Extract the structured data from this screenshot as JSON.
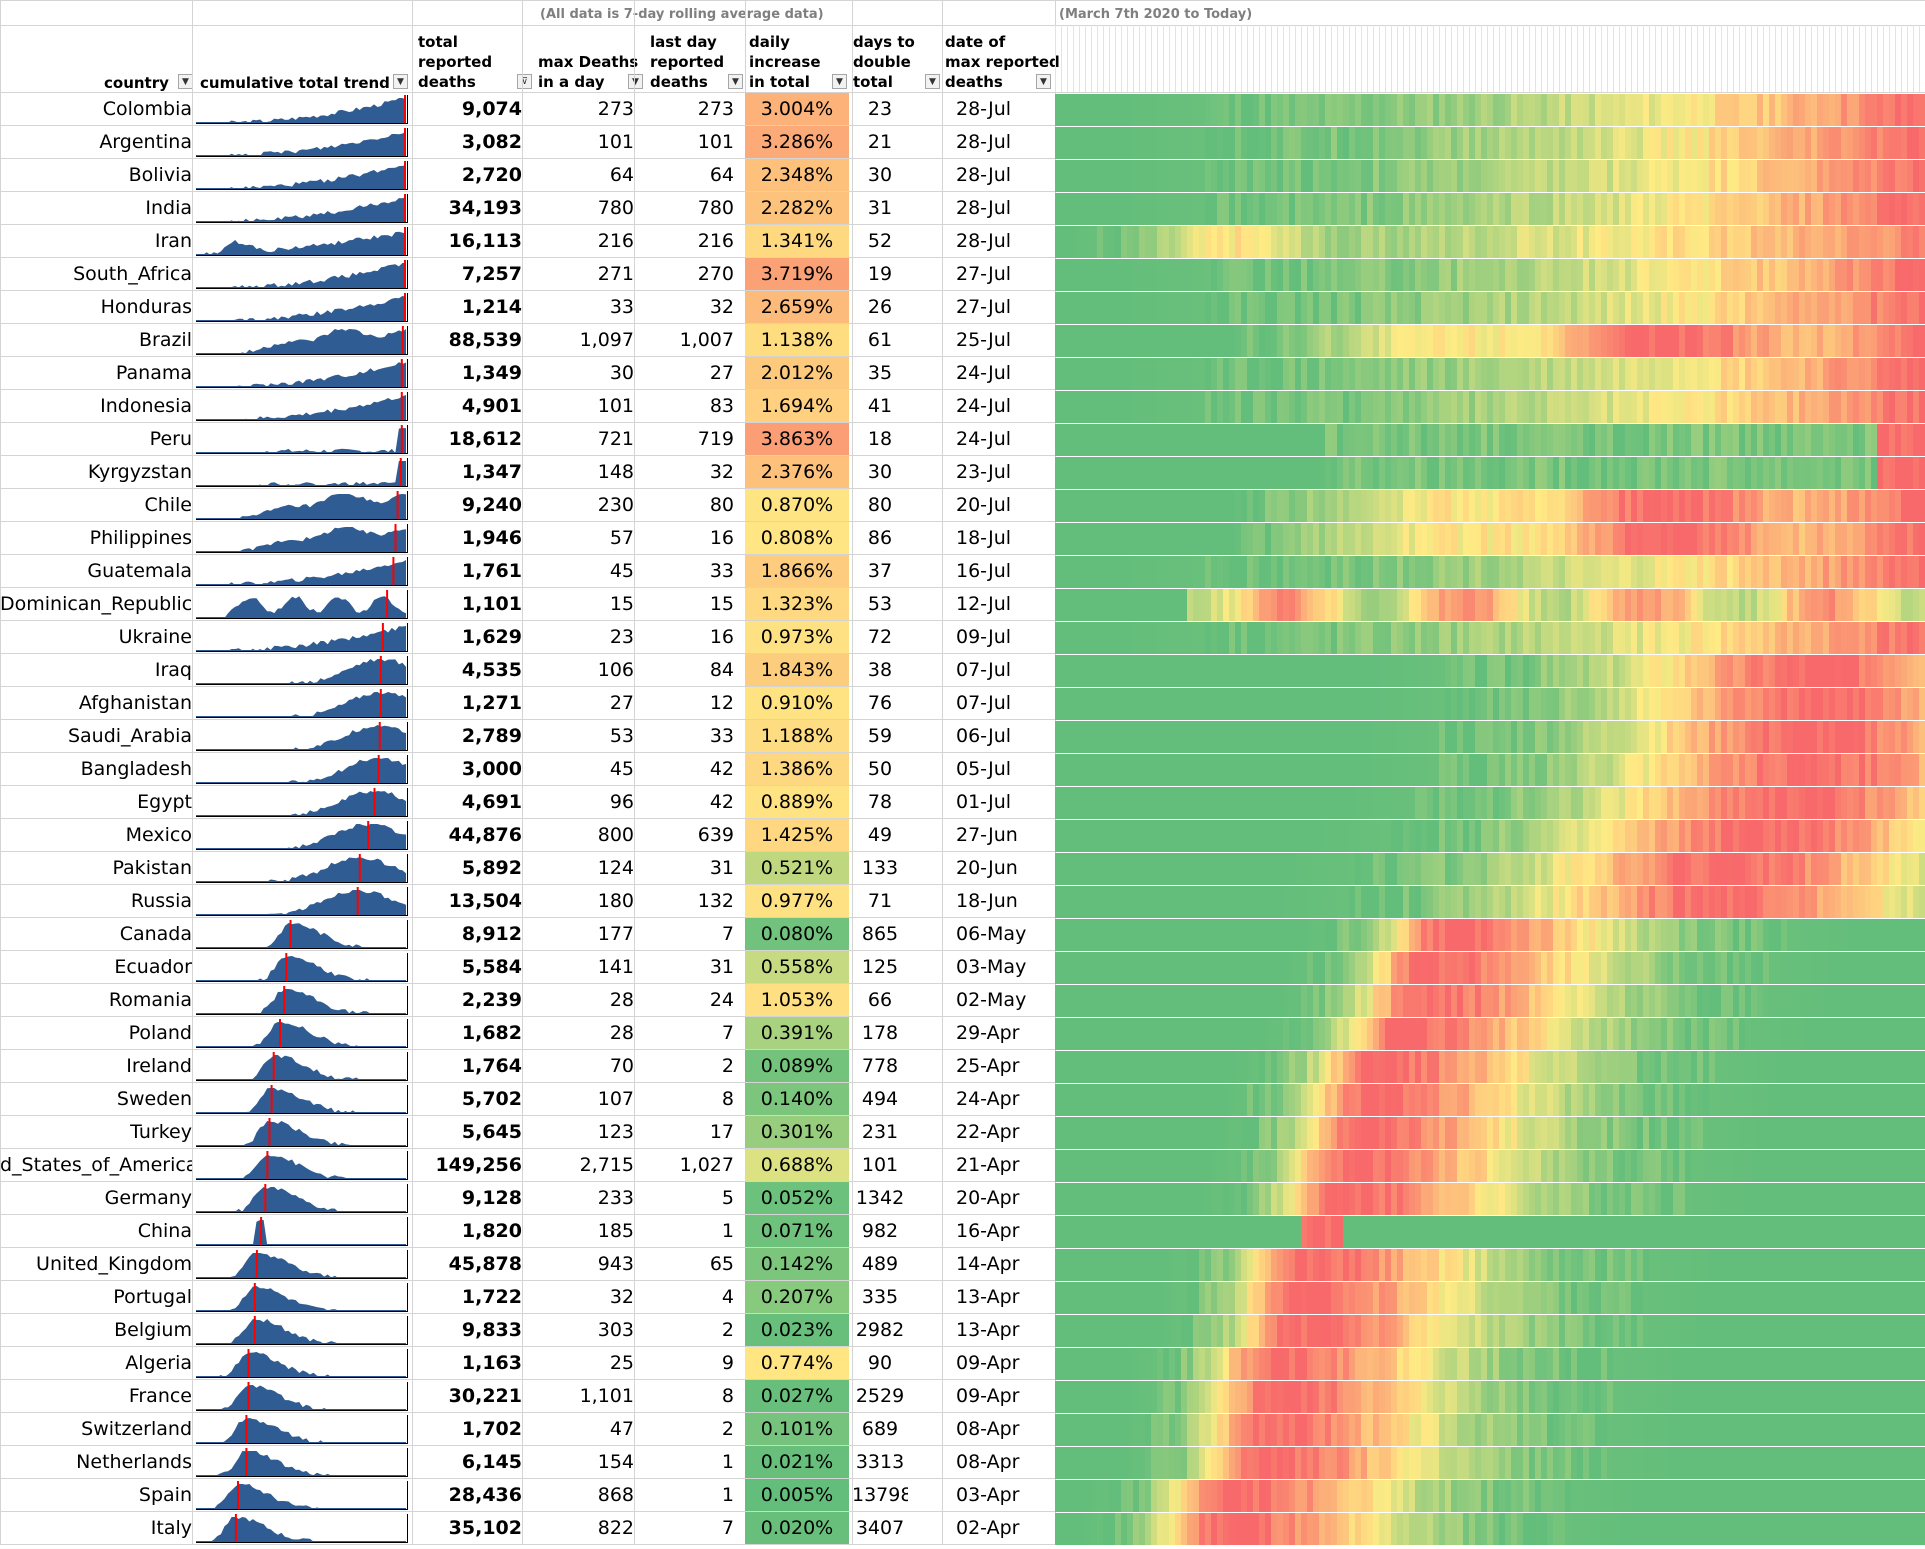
{
  "notes": {
    "rolling_note": "(All data is 7-day rolling average data)",
    "range_note": "(March 7th 2020 to Today)"
  },
  "headers": {
    "country": "country",
    "trend": "cumulative total trend",
    "total": "total\nreported\ndeaths",
    "max": "max Deaths\nin a day",
    "last": "last day\nreported\ndeaths",
    "daily": "daily\nincrease\nin total",
    "double": "days to\ndouble\ntotal",
    "date": "date of\nmax reported\ndeaths"
  },
  "filter_icon": "filter-dropdown-icon",
  "colors": {
    "spark_fill": "#2e5c93",
    "spark_marker": "#ff0000",
    "heat_low": "#63be7b",
    "heat_mid": "#ffeb84",
    "heat_high": "#f8696b"
  },
  "chart_data": {
    "type": "table",
    "columns": [
      "country",
      "total reported deaths",
      "max Deaths in a day",
      "last day reported deaths",
      "daily increase in total",
      "days to double total",
      "date of max reported deaths"
    ],
    "rows": [
      {
        "country": "Colombia",
        "total": "9,074",
        "max": "273",
        "last": "273",
        "daily": "3.004%",
        "double": "23",
        "date": "28-Jul",
        "peak": 1.0,
        "trend": "rising"
      },
      {
        "country": "Argentina",
        "total": "3,082",
        "max": "101",
        "last": "101",
        "daily": "3.286%",
        "double": "21",
        "date": "28-Jul",
        "peak": 1.0,
        "trend": "rising"
      },
      {
        "country": "Bolivia",
        "total": "2,720",
        "max": "64",
        "last": "64",
        "daily": "2.348%",
        "double": "30",
        "date": "28-Jul",
        "peak": 1.0,
        "trend": "rising"
      },
      {
        "country": "India",
        "total": "34,193",
        "max": "780",
        "last": "780",
        "daily": "2.282%",
        "double": "31",
        "date": "28-Jul",
        "peak": 1.0,
        "trend": "rising"
      },
      {
        "country": "Iran",
        "total": "16,113",
        "max": "216",
        "last": "216",
        "daily": "1.341%",
        "double": "52",
        "date": "28-Jul",
        "peak": 1.0,
        "trend": "wave2"
      },
      {
        "country": "South_Africa",
        "total": "7,257",
        "max": "271",
        "last": "270",
        "daily": "3.719%",
        "double": "19",
        "date": "27-Jul",
        "peak": 0.995,
        "trend": "rising"
      },
      {
        "country": "Honduras",
        "total": "1,214",
        "max": "33",
        "last": "32",
        "daily": "2.659%",
        "double": "26",
        "date": "27-Jul",
        "peak": 0.995,
        "trend": "rising"
      },
      {
        "country": "Brazil",
        "total": "88,539",
        "max": "1,097",
        "last": "1,007",
        "daily": "1.138%",
        "double": "61",
        "date": "25-Jul",
        "peak": 0.985,
        "trend": "plateau"
      },
      {
        "country": "Panama",
        "total": "1,349",
        "max": "30",
        "last": "27",
        "daily": "2.012%",
        "double": "35",
        "date": "24-Jul",
        "peak": 0.98,
        "trend": "rising"
      },
      {
        "country": "Indonesia",
        "total": "4,901",
        "max": "101",
        "last": "83",
        "daily": "1.694%",
        "double": "41",
        "date": "24-Jul",
        "peak": 0.98,
        "trend": "rising"
      },
      {
        "country": "Peru",
        "total": "18,612",
        "max": "721",
        "last": "719",
        "daily": "3.863%",
        "double": "18",
        "date": "24-Jul",
        "peak": 0.98,
        "trend": "spike"
      },
      {
        "country": "Kyrgyzstan",
        "total": "1,347",
        "max": "148",
        "last": "32",
        "daily": "2.376%",
        "double": "30",
        "date": "23-Jul",
        "peak": 0.975,
        "trend": "spike"
      },
      {
        "country": "Chile",
        "total": "9,240",
        "max": "230",
        "last": "80",
        "daily": "0.870%",
        "double": "80",
        "date": "20-Jul",
        "peak": 0.96,
        "trend": "plateau"
      },
      {
        "country": "Philippines",
        "total": "1,946",
        "max": "57",
        "last": "16",
        "daily": "0.808%",
        "double": "86",
        "date": "18-Jul",
        "peak": 0.95,
        "trend": "plateau"
      },
      {
        "country": "Guatemala",
        "total": "1,761",
        "max": "45",
        "last": "33",
        "daily": "1.866%",
        "double": "37",
        "date": "16-Jul",
        "peak": 0.94,
        "trend": "rising"
      },
      {
        "country": "Dominican_Republic",
        "total": "1,101",
        "max": "15",
        "last": "15",
        "daily": "1.323%",
        "double": "53",
        "date": "12-Jul",
        "peak": 0.91,
        "trend": "flat"
      },
      {
        "country": "Ukraine",
        "total": "1,629",
        "max": "23",
        "last": "16",
        "daily": "0.973%",
        "double": "72",
        "date": "09-Jul",
        "peak": 0.89,
        "trend": "rising"
      },
      {
        "country": "Iraq",
        "total": "4,535",
        "max": "106",
        "last": "84",
        "daily": "1.843%",
        "double": "38",
        "date": "07-Jul",
        "peak": 0.88,
        "trend": "hump"
      },
      {
        "country": "Afghanistan",
        "total": "1,271",
        "max": "27",
        "last": "12",
        "daily": "0.910%",
        "double": "76",
        "date": "07-Jul",
        "peak": 0.88,
        "trend": "hump"
      },
      {
        "country": "Saudi_Arabia",
        "total": "2,789",
        "max": "53",
        "last": "33",
        "daily": "1.188%",
        "double": "59",
        "date": "06-Jul",
        "peak": 0.875,
        "trend": "hump"
      },
      {
        "country": "Bangladesh",
        "total": "3,000",
        "max": "45",
        "last": "42",
        "daily": "1.386%",
        "double": "50",
        "date": "05-Jul",
        "peak": 0.87,
        "trend": "hump"
      },
      {
        "country": "Egypt",
        "total": "4,691",
        "max": "96",
        "last": "42",
        "daily": "0.889%",
        "double": "78",
        "date": "01-Jul",
        "peak": 0.85,
        "trend": "hump"
      },
      {
        "country": "Mexico",
        "total": "44,876",
        "max": "800",
        "last": "639",
        "daily": "1.425%",
        "double": "49",
        "date": "27-Jun",
        "peak": 0.82,
        "trend": "hump"
      },
      {
        "country": "Pakistan",
        "total": "5,892",
        "max": "124",
        "last": "31",
        "daily": "0.521%",
        "double": "133",
        "date": "20-Jun",
        "peak": 0.78,
        "trend": "hump"
      },
      {
        "country": "Russia",
        "total": "13,504",
        "max": "180",
        "last": "132",
        "daily": "0.977%",
        "double": "71",
        "date": "18-Jun",
        "peak": 0.77,
        "trend": "hump"
      },
      {
        "country": "Canada",
        "total": "8,912",
        "max": "177",
        "last": "7",
        "daily": "0.080%",
        "double": "865",
        "date": "06-May",
        "peak": 0.45,
        "trend": "early"
      },
      {
        "country": "Ecuador",
        "total": "5,584",
        "max": "141",
        "last": "31",
        "daily": "0.558%",
        "double": "125",
        "date": "03-May",
        "peak": 0.43,
        "trend": "early"
      },
      {
        "country": "Romania",
        "total": "2,239",
        "max": "28",
        "last": "24",
        "daily": "1.053%",
        "double": "66",
        "date": "02-May",
        "peak": 0.42,
        "trend": "early"
      },
      {
        "country": "Poland",
        "total": "1,682",
        "max": "28",
        "last": "7",
        "daily": "0.391%",
        "double": "178",
        "date": "29-Apr",
        "peak": 0.4,
        "trend": "early"
      },
      {
        "country": "Ireland",
        "total": "1,764",
        "max": "70",
        "last": "2",
        "daily": "0.089%",
        "double": "778",
        "date": "25-Apr",
        "peak": 0.37,
        "trend": "early"
      },
      {
        "country": "Sweden",
        "total": "5,702",
        "max": "107",
        "last": "8",
        "daily": "0.140%",
        "double": "494",
        "date": "24-Apr",
        "peak": 0.36,
        "trend": "early"
      },
      {
        "country": "Turkey",
        "total": "5,645",
        "max": "123",
        "last": "17",
        "daily": "0.301%",
        "double": "231",
        "date": "22-Apr",
        "peak": 0.35,
        "trend": "early"
      },
      {
        "country": "d_States_of_America",
        "total": "149,256",
        "max": "2,715",
        "last": "1,027",
        "daily": "0.688%",
        "double": "101",
        "date": "21-Apr",
        "peak": 0.34,
        "trend": "early"
      },
      {
        "country": "Germany",
        "total": "9,128",
        "max": "233",
        "last": "5",
        "daily": "0.052%",
        "double": "1342",
        "date": "20-Apr",
        "peak": 0.33,
        "trend": "early"
      },
      {
        "country": "China",
        "total": "1,820",
        "max": "185",
        "last": "1",
        "daily": "0.071%",
        "double": "982",
        "date": "16-Apr",
        "peak": 0.31,
        "trend": "china"
      },
      {
        "country": "United_Kingdom",
        "total": "45,878",
        "max": "943",
        "last": "65",
        "daily": "0.142%",
        "double": "489",
        "date": "14-Apr",
        "peak": 0.29,
        "trend": "early"
      },
      {
        "country": "Portugal",
        "total": "1,722",
        "max": "32",
        "last": "4",
        "daily": "0.207%",
        "double": "335",
        "date": "13-Apr",
        "peak": 0.28,
        "trend": "early"
      },
      {
        "country": "Belgium",
        "total": "9,833",
        "max": "303",
        "last": "2",
        "daily": "0.023%",
        "double": "2982",
        "date": "13-Apr",
        "peak": 0.28,
        "trend": "early"
      },
      {
        "country": "Algeria",
        "total": "1,163",
        "max": "25",
        "last": "9",
        "daily": "0.774%",
        "double": "90",
        "date": "09-Apr",
        "peak": 0.25,
        "trend": "early"
      },
      {
        "country": "France",
        "total": "30,221",
        "max": "1,101",
        "last": "8",
        "daily": "0.027%",
        "double": "2529",
        "date": "09-Apr",
        "peak": 0.25,
        "trend": "early"
      },
      {
        "country": "Switzerland",
        "total": "1,702",
        "max": "47",
        "last": "2",
        "daily": "0.101%",
        "double": "689",
        "date": "08-Apr",
        "peak": 0.24,
        "trend": "early"
      },
      {
        "country": "Netherlands",
        "total": "6,145",
        "max": "154",
        "last": "1",
        "daily": "0.021%",
        "double": "3313",
        "date": "08-Apr",
        "peak": 0.24,
        "trend": "early"
      },
      {
        "country": "Spain",
        "total": "28,436",
        "max": "868",
        "last": "1",
        "daily": "0.005%",
        "double": "13798",
        "date": "03-Apr",
        "peak": 0.2,
        "trend": "early"
      },
      {
        "country": "Italy",
        "total": "35,102",
        "max": "822",
        "last": "7",
        "daily": "0.020%",
        "double": "3407",
        "date": "02-Apr",
        "peak": 0.19,
        "trend": "early"
      }
    ]
  }
}
